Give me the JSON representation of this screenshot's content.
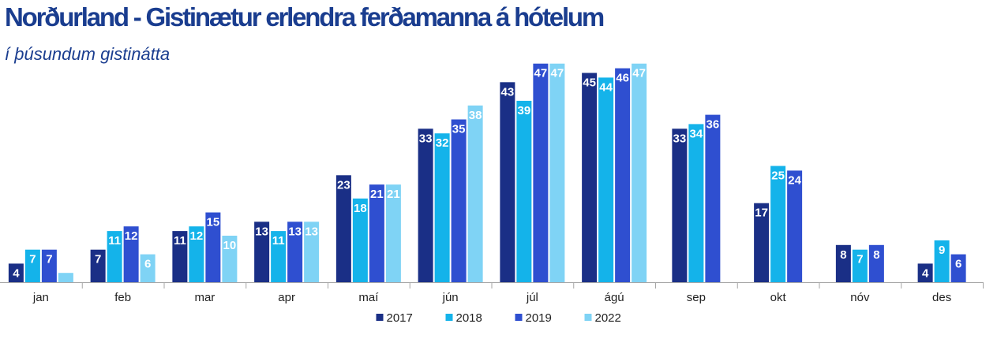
{
  "chart_data": {
    "type": "bar",
    "title": "Norðurland - Gistinætur erlendra ferðamanna á hótelum",
    "subtitle": "í þúsundum gistinátta",
    "categories": [
      "jan",
      "feb",
      "mar",
      "apr",
      "maí",
      "jún",
      "júl",
      "ágú",
      "sep",
      "okt",
      "nóv",
      "des"
    ],
    "series": [
      {
        "name": "2017",
        "color": "#1a2f86",
        "values": [
          4,
          7,
          11,
          13,
          23,
          33,
          43,
          45,
          33,
          17,
          8,
          4
        ]
      },
      {
        "name": "2018",
        "color": "#14b3ea",
        "values": [
          7,
          11,
          12,
          11,
          18,
          32,
          39,
          44,
          34,
          25,
          7,
          9
        ]
      },
      {
        "name": "2019",
        "color": "#2f4fd0",
        "values": [
          7,
          12,
          15,
          13,
          21,
          35,
          47,
          46,
          36,
          24,
          8,
          6
        ]
      },
      {
        "name": "2022",
        "color": "#7fd3f5",
        "values": [
          2,
          6,
          10,
          13,
          21,
          38,
          47,
          47,
          null,
          null,
          null,
          null
        ]
      }
    ],
    "data_labels": [
      [
        "4",
        "7",
        "7",
        ""
      ],
      [
        "7",
        "11",
        "12",
        "6"
      ],
      [
        "11",
        "12",
        "15",
        "10"
      ],
      [
        "13",
        "11",
        "13",
        "13"
      ],
      [
        "23",
        "18",
        "21",
        "21"
      ],
      [
        "33",
        "32",
        "35",
        "38"
      ],
      [
        "43",
        "39",
        "47",
        "47"
      ],
      [
        "45",
        "44",
        "46",
        "47"
      ],
      [
        "33",
        "34",
        "36",
        ""
      ],
      [
        "17",
        "25",
        "24",
        ""
      ],
      [
        "8",
        "7",
        "8",
        ""
      ],
      [
        "4",
        "9",
        "6",
        ""
      ]
    ],
    "ylim": [
      0,
      50
    ],
    "grid": false,
    "legend_position": "bottom"
  }
}
